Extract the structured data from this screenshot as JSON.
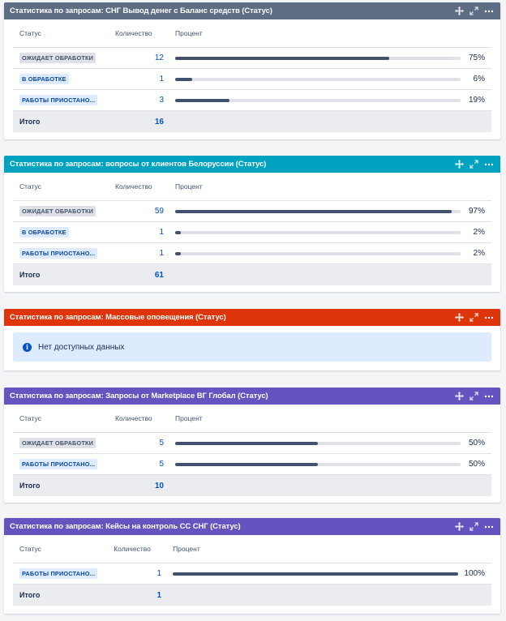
{
  "columns": {
    "status": "Статус",
    "count": "Количество",
    "percent": "Процент"
  },
  "total_label": "Итого",
  "colors": {
    "gadget1": "#5e6c84",
    "gadget2": "#00a3bf",
    "gadget3": "#de350b",
    "gadget4": "#6554c0",
    "gadget5": "#6554c0"
  },
  "icons": [
    "move-icon",
    "expand-icon",
    "more-icon",
    "info-icon"
  ],
  "gadgets": [
    {
      "title": "Статистика по запросам: СНГ Вывод денег с Баланс средств (Статус)",
      "rows": [
        {
          "status": "ОЖИДАЕТ ОБРАБОТКИ",
          "count": "12",
          "percent": "75%",
          "fraction": 0.75
        },
        {
          "status": "В ОБРАБОТКЕ",
          "count": "1",
          "percent": "6%",
          "fraction": 0.06
        },
        {
          "status": "РАБОТЫ ПРИОСТАНО...",
          "count": "3",
          "percent": "19%",
          "fraction": 0.19
        }
      ],
      "total": "16"
    },
    {
      "title": "Статистика по запросам: вопросы от клиентов Белоруссии (Статус)",
      "rows": [
        {
          "status": "ОЖИДАЕТ ОБРАБОТКИ",
          "count": "59",
          "percent": "97%",
          "fraction": 0.97
        },
        {
          "status": "В ОБРАБОТКЕ",
          "count": "1",
          "percent": "2%",
          "fraction": 0.02
        },
        {
          "status": "РАБОТЫ ПРИОСТАНО...",
          "count": "1",
          "percent": "2%",
          "fraction": 0.02
        }
      ],
      "total": "61"
    },
    {
      "title": "Статистика по запросам: Массовые оповещения (Статус)",
      "no_data": "Нет доступных данных"
    },
    {
      "title": "Статистика по запросам: Запросы от Marketplace ВГ Глобал (Статус)",
      "rows": [
        {
          "status": "ОЖИДАЕТ ОБРАБОТКИ",
          "count": "5",
          "percent": "50%",
          "fraction": 0.5
        },
        {
          "status": "РАБОТЫ ПРИОСТАНО...",
          "count": "5",
          "percent": "50%",
          "fraction": 0.5
        }
      ],
      "total": "10"
    },
    {
      "title": "Статистика по запросам: Кейсы на контроль СС СНГ (Статус)",
      "rows": [
        {
          "status": "РАБОТЫ ПРИОСТАНО...",
          "count": "1",
          "percent": "100%",
          "fraction": 1.0
        }
      ],
      "total": "1"
    }
  ]
}
